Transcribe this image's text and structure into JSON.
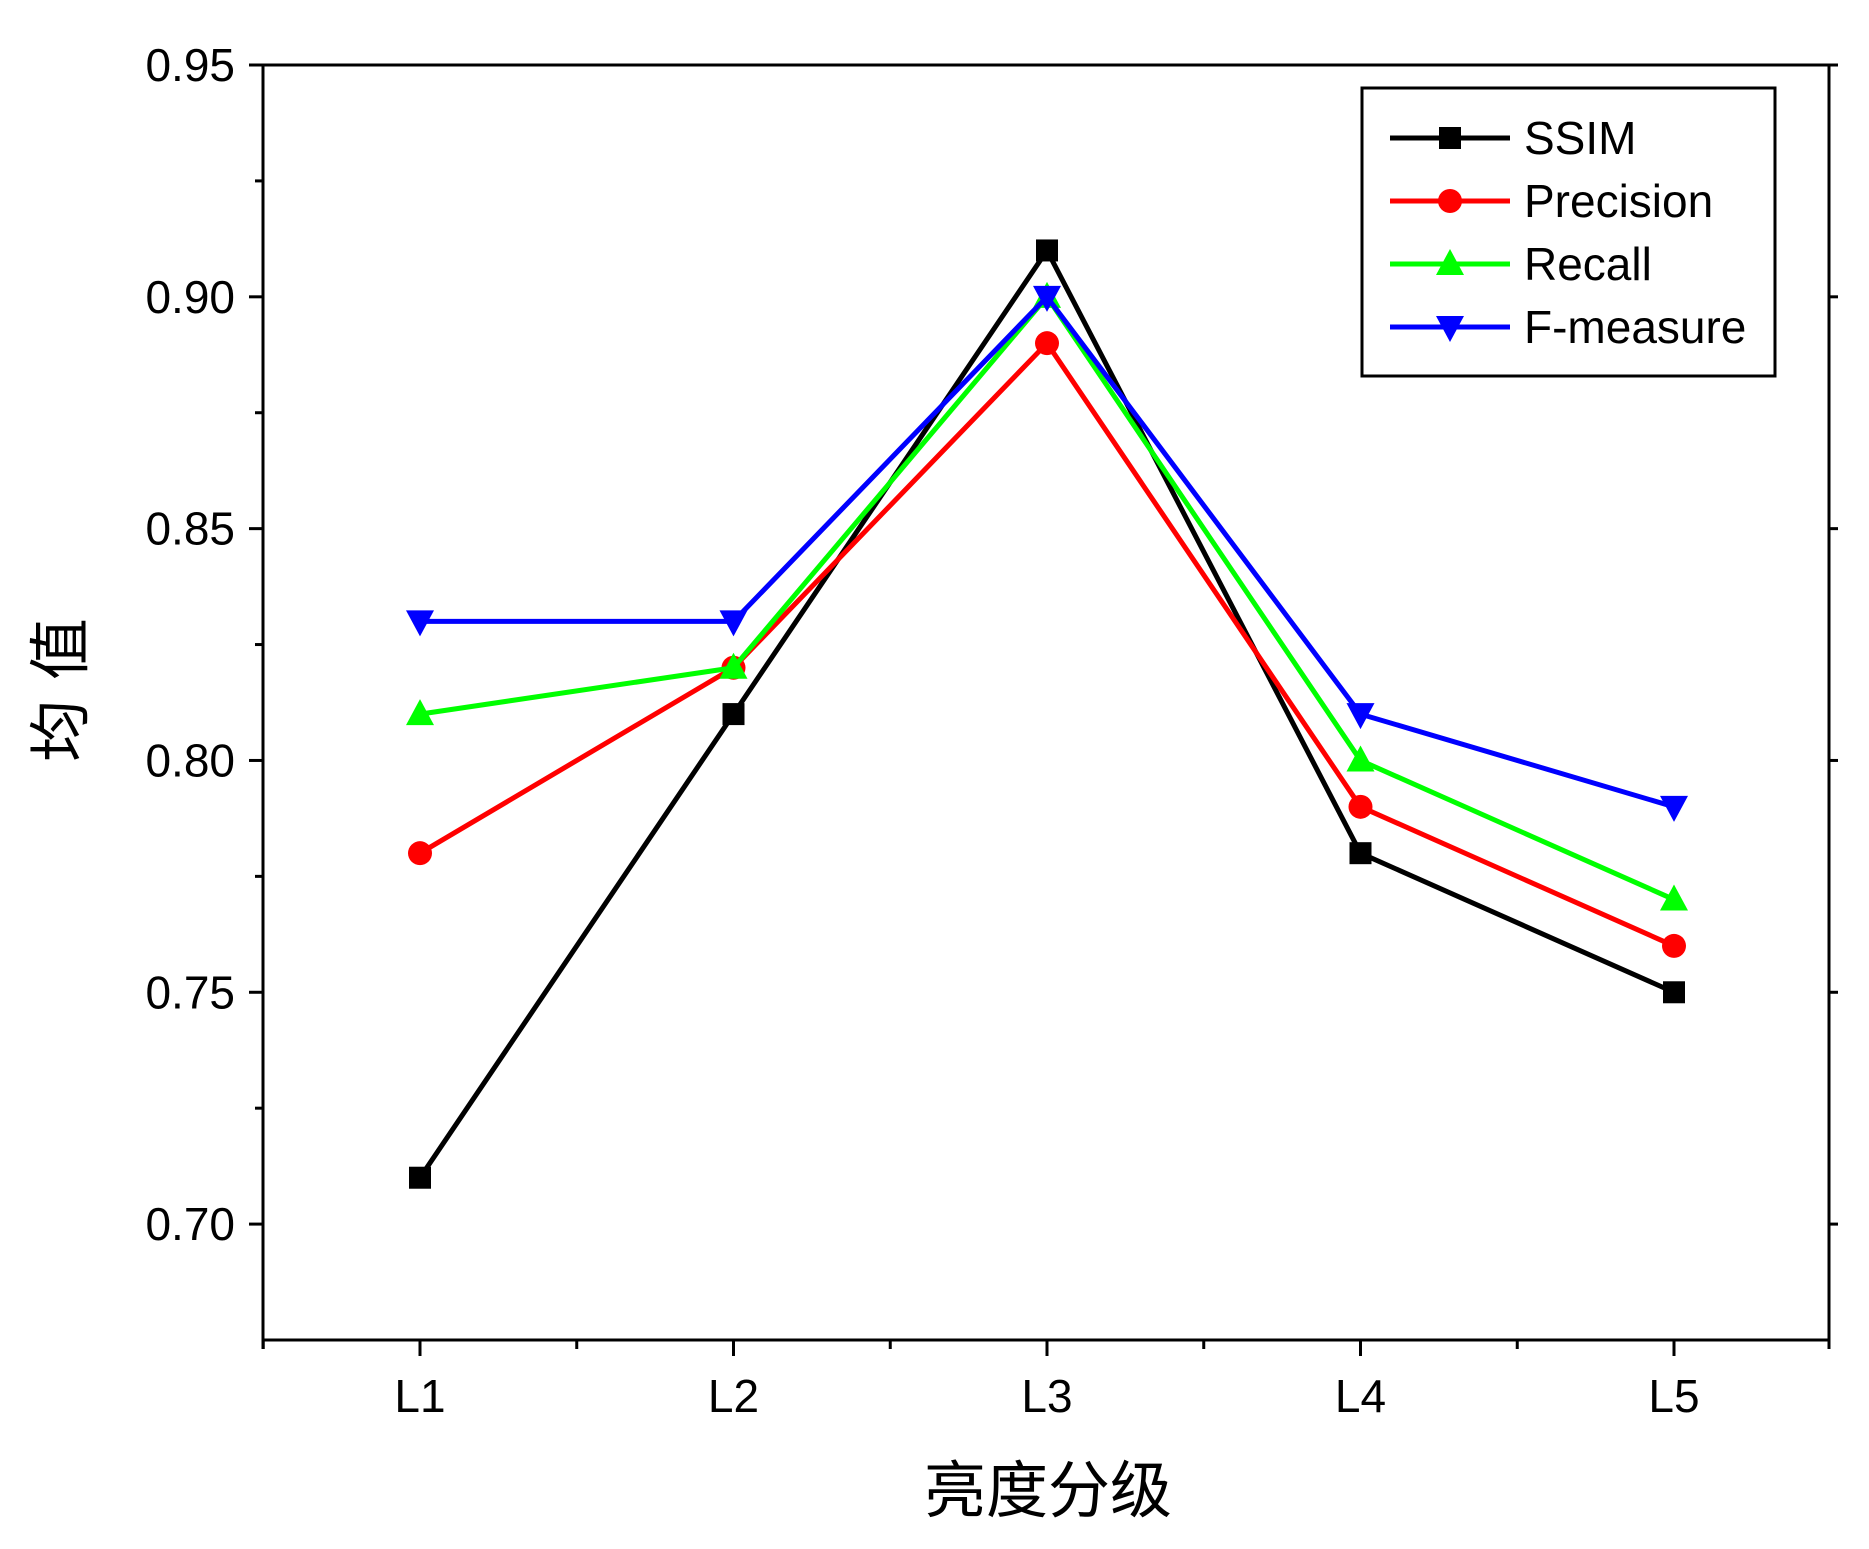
{
  "chart_data": {
    "type": "line",
    "title": "",
    "xlabel": "亮度分级",
    "ylabel": "均 值",
    "categories": [
      "L1",
      "L2",
      "L3",
      "L4",
      "L5"
    ],
    "ylim": [
      0.675,
      0.95
    ],
    "yticks": [
      0.7,
      0.75,
      0.8,
      0.85,
      0.9,
      0.95
    ],
    "ytick_labels": [
      "0.70",
      "0.75",
      "0.80",
      "0.85",
      "0.90",
      "0.95"
    ],
    "grid": false,
    "legend_position": "top-right",
    "series": [
      {
        "name": "SSIM",
        "values": [
          0.71,
          0.81,
          0.91,
          0.78,
          0.75
        ],
        "color": "#000000",
        "marker": "square"
      },
      {
        "name": "Precision",
        "values": [
          0.78,
          0.82,
          0.89,
          0.79,
          0.76
        ],
        "color": "#ff0000",
        "marker": "circle"
      },
      {
        "name": "Recall",
        "values": [
          0.81,
          0.82,
          0.9,
          0.8,
          0.77
        ],
        "color": "#00ff00",
        "marker": "triangle-up"
      },
      {
        "name": "F-measure",
        "values": [
          0.83,
          0.83,
          0.9,
          0.81,
          0.79
        ],
        "color": "#0000ff",
        "marker": "triangle-down"
      }
    ]
  }
}
